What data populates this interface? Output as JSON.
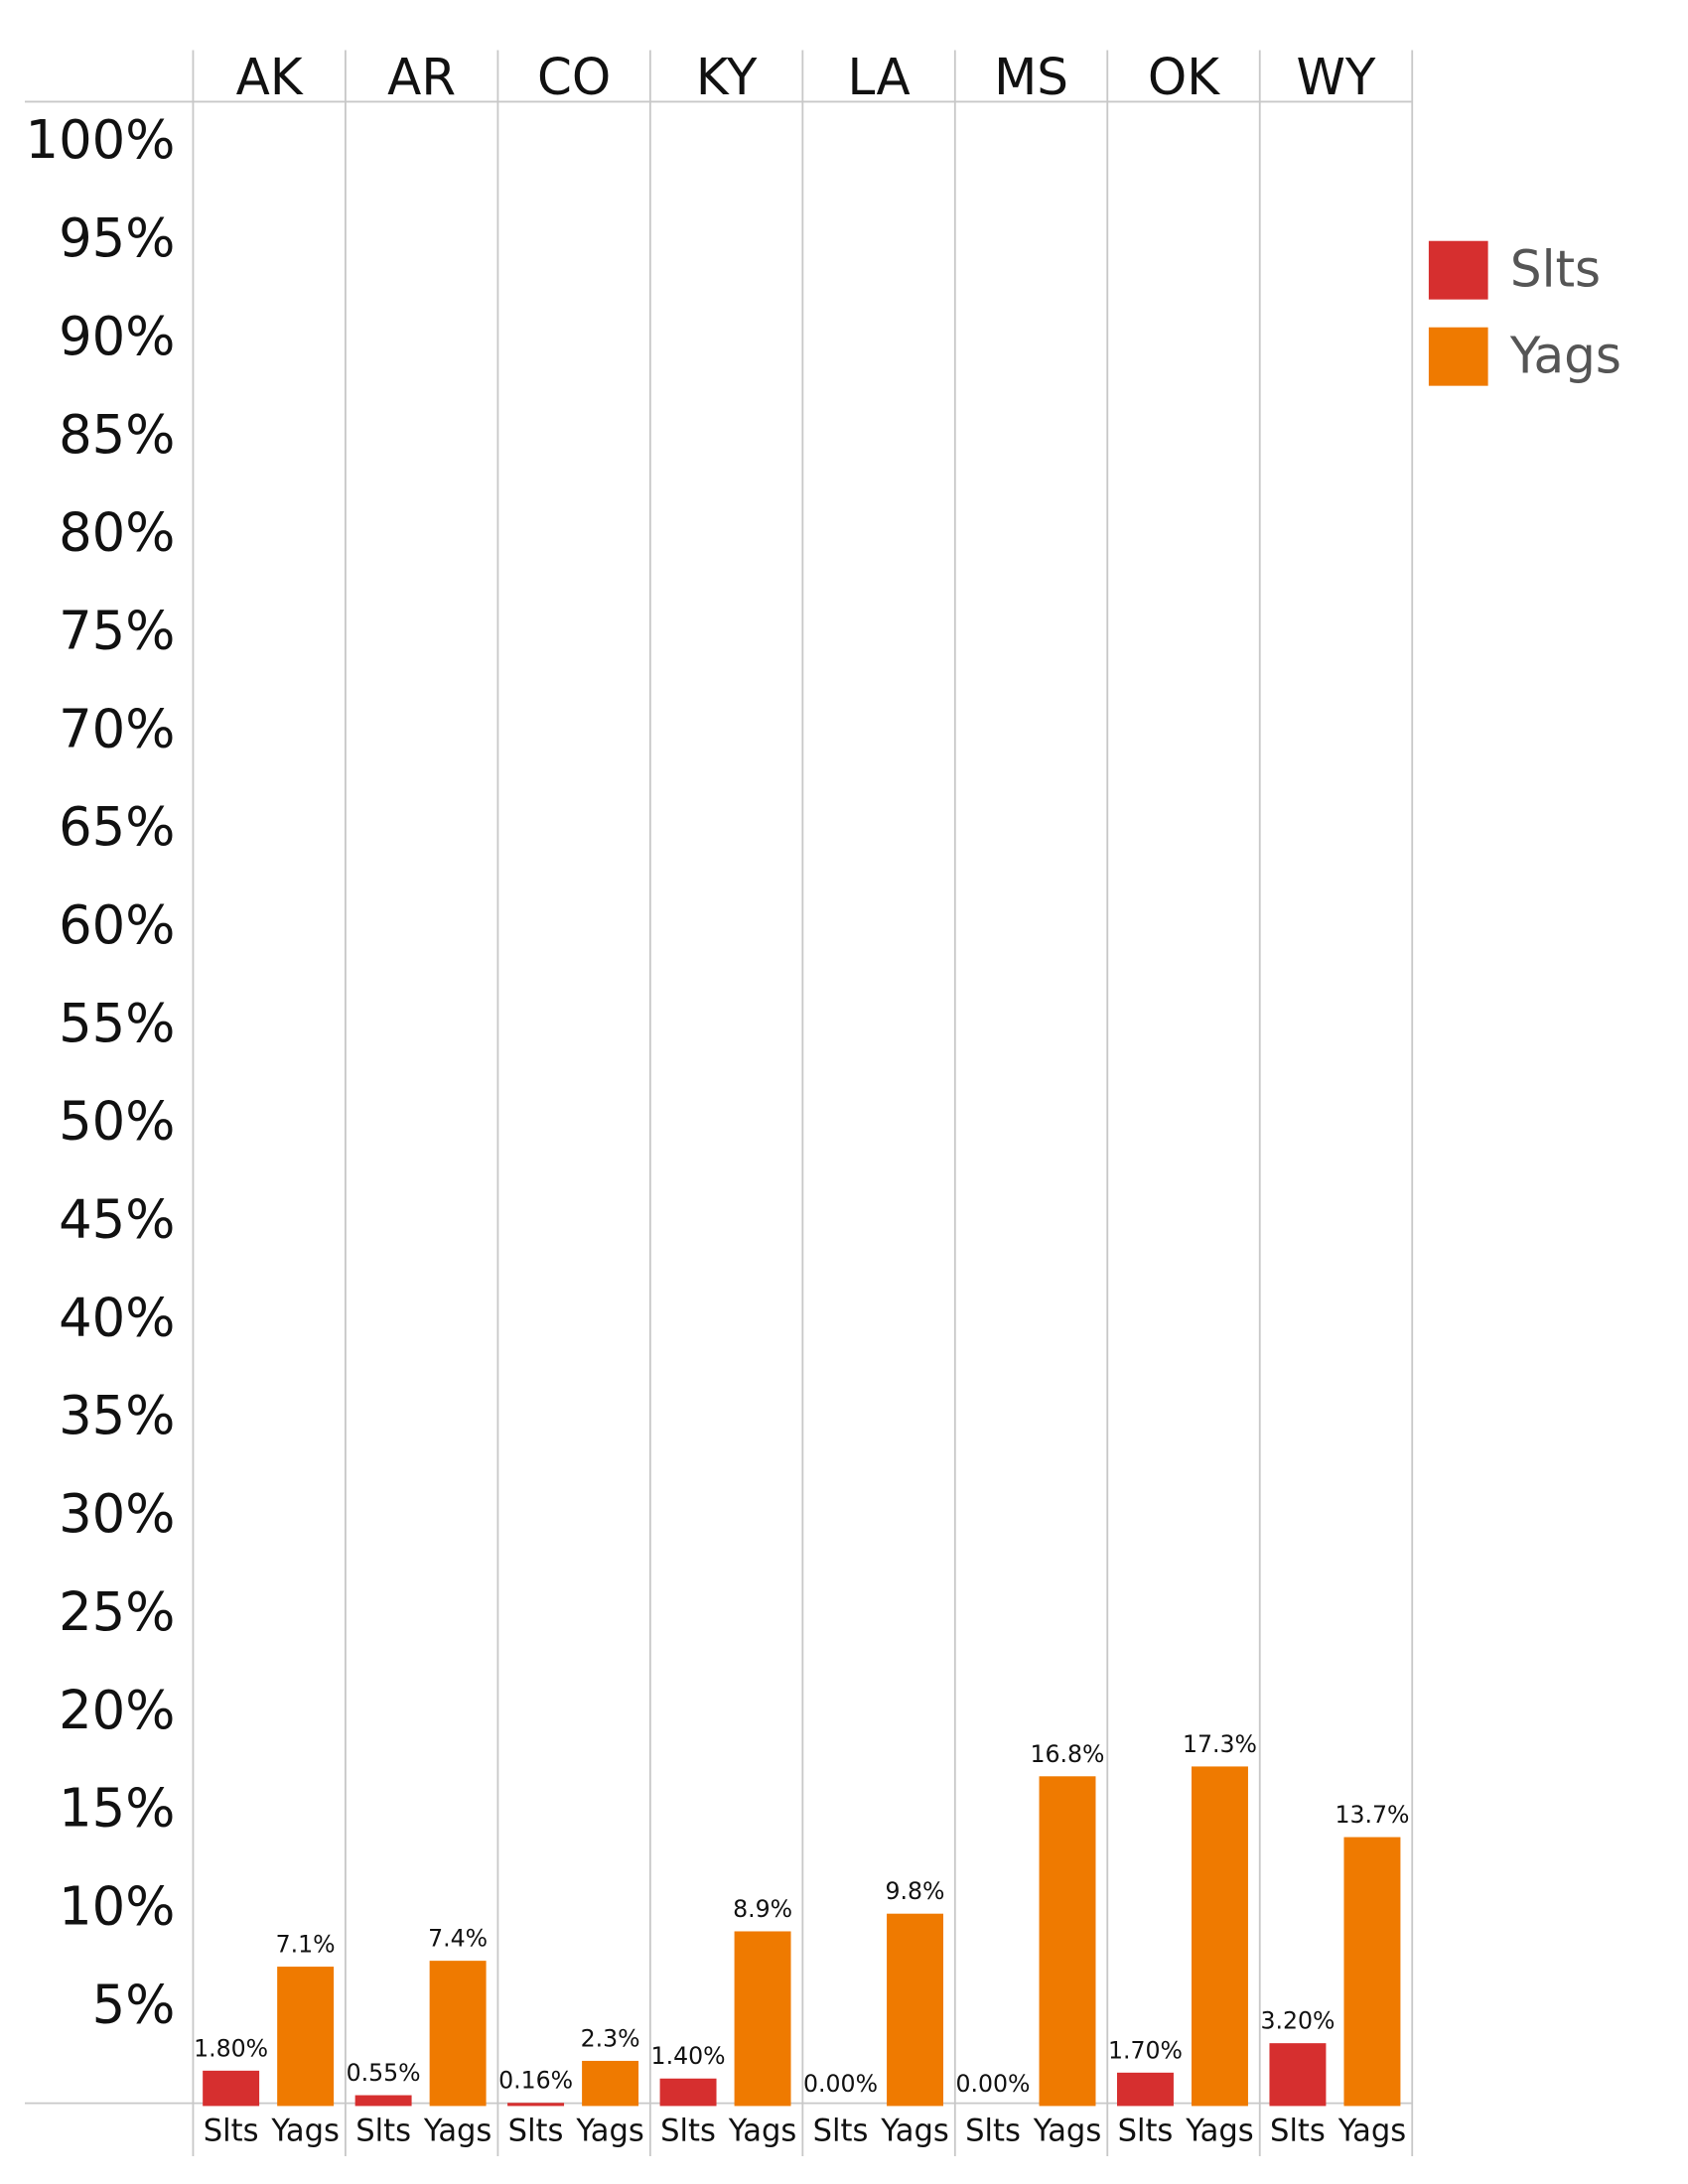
{
  "chart_data": {
    "type": "bar",
    "categories": [
      "AK",
      "AR",
      "CO",
      "KY",
      "LA",
      "MS",
      "OK",
      "WY"
    ],
    "series": [
      {
        "name": "Slts",
        "color": "#d62f2f",
        "values": [
          1.8,
          0.55,
          0.16,
          1.4,
          0,
          0,
          1.7,
          3.2
        ],
        "value_labels": [
          "1.80%",
          "0.55%",
          "0.16%",
          "1.40%",
          "0.00%",
          "0.00%",
          "1.70%",
          "3.20%"
        ]
      },
      {
        "name": "Yags",
        "color": "#ef7a00",
        "values": [
          7.1,
          7.4,
          2.3,
          8.9,
          9.8,
          16.8,
          17.3,
          13.7
        ],
        "value_labels": [
          "7.1%",
          "7.4%",
          "2.3%",
          "8.9%",
          "9.8%",
          "16.8%",
          "17.3%",
          "13.7%"
        ]
      }
    ],
    "ylim": [
      0,
      100
    ],
    "yticks": [
      {
        "value": 5,
        "label": "5%"
      },
      {
        "value": 10,
        "label": "10%"
      },
      {
        "value": 15,
        "label": "15%"
      },
      {
        "value": 20,
        "label": "20%"
      },
      {
        "value": 25,
        "label": "25%"
      },
      {
        "value": 30,
        "label": "30%"
      },
      {
        "value": 35,
        "label": "35%"
      },
      {
        "value": 40,
        "label": "40%"
      },
      {
        "value": 45,
        "label": "45%"
      },
      {
        "value": 50,
        "label": "50%"
      },
      {
        "value": 55,
        "label": "55%"
      },
      {
        "value": 60,
        "label": "60%"
      },
      {
        "value": 65,
        "label": "65%"
      },
      {
        "value": 70,
        "label": "70%"
      },
      {
        "value": 75,
        "label": "75%"
      },
      {
        "value": 80,
        "label": "80%"
      },
      {
        "value": 85,
        "label": "85%"
      },
      {
        "value": 90,
        "label": "90%"
      },
      {
        "value": 95,
        "label": "95%"
      },
      {
        "value": 100,
        "label": "100%"
      }
    ],
    "legend": "right"
  }
}
